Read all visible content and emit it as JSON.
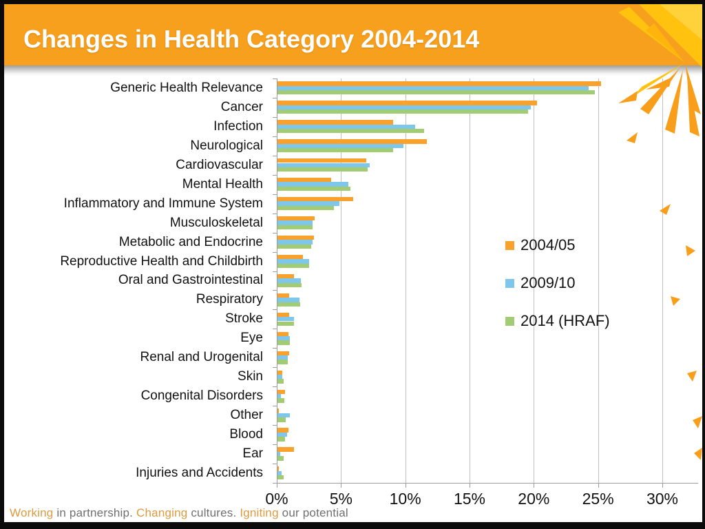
{
  "slide": {
    "title": "Changes in Health Category 2004-2014",
    "footer_segments": [
      {
        "text": "Working",
        "color": "#DE9A3E"
      },
      {
        "text": " in partnership. ",
        "color": "#6F6F6F"
      },
      {
        "text": "Changing",
        "color": "#DE9A3E"
      },
      {
        "text": " cultures. ",
        "color": "#6F6F6F"
      },
      {
        "text": "Igniting",
        "color": "#DE9A3E"
      },
      {
        "text": " our potential",
        "color": "#6F6F6F"
      }
    ]
  },
  "colors": {
    "header_background": "#F7A01E",
    "splash_yellow": "#FFC20E",
    "splash_orange": "#F89E1B",
    "gridline": "#BFBFBF",
    "axis": "#9C9C9C",
    "text": "#111111"
  },
  "chart_data": {
    "type": "bar",
    "orientation": "horizontal",
    "title": "",
    "xlabel": "",
    "ylabel": "",
    "xlim": [
      0,
      30
    ],
    "x_tick_labels": [
      "0%",
      "5%",
      "10%",
      "15%",
      "20%",
      "25%",
      "30%"
    ],
    "x_tick_values": [
      0,
      5,
      10,
      15,
      20,
      25,
      30
    ],
    "grid": "vertical",
    "legend_position": "middle-right",
    "categories": [
      "Generic Health Relevance",
      "Cancer",
      "Infection",
      "Neurological",
      "Cardiovascular",
      "Mental Health",
      "Inflammatory and Immune System",
      "Musculoskeletal",
      "Metabolic and Endocrine",
      "Reproductive Health and Childbirth",
      "Oral and Gastrointestinal",
      "Respiratory",
      "Stroke",
      "Eye",
      "Renal and Urogenital",
      "Skin",
      "Congenital Disorders",
      "Other",
      "Blood",
      "Ear",
      "Injuries and Accidents"
    ],
    "series": [
      {
        "name": "2004/05",
        "color": "#F8A12C",
        "values": [
          25.2,
          20.2,
          9.0,
          11.6,
          6.9,
          4.2,
          5.9,
          2.9,
          2.85,
          2.0,
          1.3,
          0.9,
          0.9,
          0.85,
          0.9,
          0.4,
          0.6,
          0.1,
          0.85,
          1.3,
          0.1
        ]
      },
      {
        "name": "2009/10",
        "color": "#7FC7EA",
        "values": [
          24.2,
          19.7,
          10.7,
          9.8,
          7.2,
          5.5,
          4.8,
          2.75,
          2.75,
          2.45,
          1.8,
          1.7,
          1.3,
          0.95,
          0.8,
          0.35,
          0.25,
          0.95,
          0.75,
          0.2,
          0.3
        ]
      },
      {
        "name": "2014 (HRAF)",
        "color": "#A2CC74",
        "values": [
          24.7,
          19.5,
          11.4,
          9.0,
          7.0,
          5.7,
          4.4,
          2.75,
          2.6,
          2.45,
          1.9,
          1.75,
          1.3,
          0.95,
          0.8,
          0.5,
          0.55,
          0.65,
          0.6,
          0.5,
          0.5
        ]
      }
    ]
  }
}
